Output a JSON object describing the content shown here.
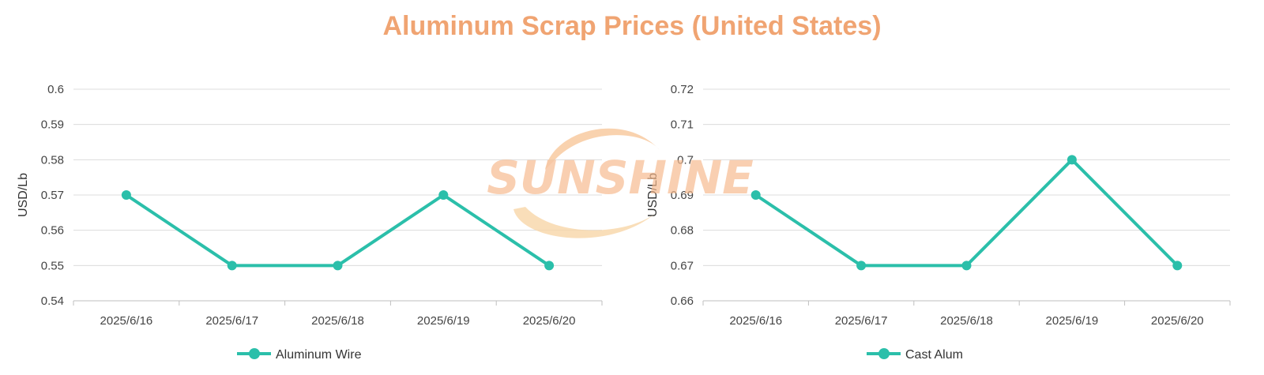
{
  "title": "Aluminum Scrap Prices (United States)",
  "watermark": "SUNSHINE",
  "colors": {
    "title": "#f0a472",
    "series": "#2bbfaa",
    "watermark": "#f6b98e"
  },
  "chart_data": [
    {
      "type": "line",
      "ylabel": "USD/Lb",
      "categories": [
        "2025/6/16",
        "2025/6/17",
        "2025/6/18",
        "2025/6/19",
        "2025/6/20"
      ],
      "ylim": [
        0.54,
        0.6
      ],
      "yticks": [
        "0.54",
        "0.55",
        "0.56",
        "0.57",
        "0.58",
        "0.59",
        "0.6"
      ],
      "series": [
        {
          "name": "Aluminum Wire",
          "values": [
            0.57,
            0.55,
            0.55,
            0.57,
            0.55
          ]
        }
      ],
      "grid": true,
      "legend": "bottom-center"
    },
    {
      "type": "line",
      "ylabel": "USD/Lb",
      "categories": [
        "2025/6/16",
        "2025/6/17",
        "2025/6/18",
        "2025/6/19",
        "2025/6/20"
      ],
      "ylim": [
        0.66,
        0.72
      ],
      "yticks": [
        "0.66",
        "0.67",
        "0.68",
        "0.69",
        "0.7",
        "0.71",
        "0.72"
      ],
      "series": [
        {
          "name": "Cast Alum",
          "values": [
            0.69,
            0.67,
            0.67,
            0.7,
            0.67
          ]
        }
      ],
      "grid": true,
      "legend": "bottom-center"
    }
  ]
}
